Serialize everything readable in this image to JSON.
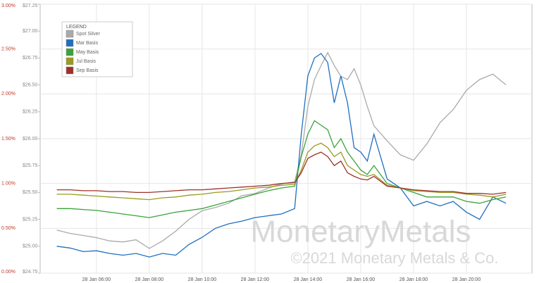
{
  "chart_data": {
    "type": "line",
    "x": [
      4.5,
      5,
      5.5,
      6,
      6.5,
      7,
      7.5,
      8,
      8.5,
      9,
      9.5,
      10,
      10.5,
      11,
      11.5,
      12,
      12.5,
      13,
      13.5,
      13.75,
      14,
      14.25,
      14.5,
      14.75,
      15,
      15.25,
      15.5,
      15.75,
      16,
      16.25,
      16.5,
      17,
      17.5,
      18,
      18.5,
      19,
      19.5,
      20,
      20.5,
      21,
      21.5
    ],
    "xlim": [
      3.87,
      22.48
    ],
    "xticks": [
      {
        "value": 6,
        "label": "28 Jan 06:00"
      },
      {
        "value": 8,
        "label": "28 Jan 08:00"
      },
      {
        "value": 10,
        "label": "28 Jan 10:00"
      },
      {
        "value": 12,
        "label": "28 Jan 12:00"
      },
      {
        "value": 14,
        "label": "28 Jan 14:00"
      },
      {
        "value": 16,
        "label": "28 Jan 16:00"
      },
      {
        "value": 18,
        "label": "28 Jan 18:00"
      },
      {
        "value": 20,
        "label": "28 Jan 20:00"
      }
    ],
    "ylim": [
      0,
      3
    ],
    "yticks": [
      {
        "value": 0,
        "label": "0.00%"
      },
      {
        "value": 0.5,
        "label": "0.50%"
      },
      {
        "value": 1,
        "label": "1.00%"
      },
      {
        "value": 1.5,
        "label": "1.50%"
      },
      {
        "value": 2,
        "label": "2.00%"
      },
      {
        "value": 2.5,
        "label": "2.50%"
      },
      {
        "value": 3,
        "label": "3.00%"
      }
    ],
    "y2lim": [
      24.75,
      27.25
    ],
    "y2ticks": [
      {
        "value": 24.75,
        "label": "$24.75"
      },
      {
        "value": 25,
        "label": "$25.00"
      },
      {
        "value": 25.25,
        "label": "$25.25"
      },
      {
        "value": 25.5,
        "label": "$25.50"
      },
      {
        "value": 25.75,
        "label": "$25.75"
      },
      {
        "value": 26,
        "label": "$26.00"
      },
      {
        "value": 26.25,
        "label": "$26.25"
      },
      {
        "value": 26.5,
        "label": "$26.50"
      },
      {
        "value": 26.75,
        "label": "$26.75"
      },
      {
        "value": 27,
        "label": "$27.00"
      },
      {
        "value": 27.25,
        "label": "$27.25"
      }
    ],
    "grid": true,
    "legend_title": "LEGEND",
    "legend_position": "upper-left",
    "watermark": "MonetaryMetals",
    "copyright": "©2021 Monetary Metals & Co.",
    "series": [
      {
        "name": "Spot Silver",
        "color": "#aaaaaa",
        "axis": "y2",
        "values": [
          25.15,
          25.12,
          25.1,
          25.08,
          25.05,
          25.04,
          25.06,
          24.98,
          25.05,
          25.14,
          25.25,
          25.33,
          25.36,
          25.4,
          25.47,
          25.49,
          25.54,
          25.58,
          25.6,
          25.85,
          26.3,
          26.55,
          26.68,
          26.8,
          26.68,
          26.58,
          26.55,
          26.65,
          26.5,
          26.3,
          26.12,
          25.98,
          25.85,
          25.8,
          25.95,
          26.15,
          26.27,
          26.45,
          26.55,
          26.6,
          26.5
        ]
      },
      {
        "name": "Mar Basis",
        "color": "#1f6fbf",
        "values": [
          0.3,
          0.28,
          0.24,
          0.25,
          0.22,
          0.2,
          0.22,
          0.18,
          0.22,
          0.2,
          0.32,
          0.4,
          0.5,
          0.55,
          0.58,
          0.62,
          0.64,
          0.66,
          0.72,
          1.55,
          2.2,
          2.4,
          2.45,
          2.35,
          1.9,
          2.2,
          1.9,
          1.4,
          1.35,
          1.25,
          1.55,
          1.05,
          0.95,
          0.75,
          0.8,
          0.75,
          0.8,
          0.68,
          0.6,
          0.85,
          0.78
        ]
      },
      {
        "name": "May Basis",
        "color": "#3aa33a",
        "values": [
          0.72,
          0.72,
          0.71,
          0.7,
          0.68,
          0.66,
          0.64,
          0.62,
          0.65,
          0.68,
          0.7,
          0.72,
          0.76,
          0.8,
          0.84,
          0.88,
          0.92,
          0.95,
          0.97,
          1.3,
          1.55,
          1.7,
          1.65,
          1.6,
          1.4,
          1.5,
          1.35,
          1.25,
          1.15,
          1.1,
          1.2,
          1.0,
          0.95,
          0.9,
          0.85,
          0.85,
          0.85,
          0.8,
          0.78,
          0.82,
          0.85
        ]
      },
      {
        "name": "Jul Basis",
        "color": "#9a9a20",
        "values": [
          0.88,
          0.88,
          0.87,
          0.86,
          0.85,
          0.84,
          0.83,
          0.82,
          0.84,
          0.85,
          0.87,
          0.88,
          0.9,
          0.91,
          0.93,
          0.95,
          0.96,
          0.98,
          0.99,
          1.15,
          1.35,
          1.42,
          1.45,
          1.4,
          1.3,
          1.35,
          1.2,
          1.15,
          1.1,
          1.08,
          1.1,
          0.98,
          0.95,
          0.92,
          0.91,
          0.9,
          0.9,
          0.88,
          0.87,
          0.85,
          0.88
        ]
      },
      {
        "name": "Sep Basis",
        "color": "#a0302a",
        "values": [
          0.93,
          0.93,
          0.92,
          0.92,
          0.91,
          0.91,
          0.9,
          0.9,
          0.91,
          0.92,
          0.93,
          0.93,
          0.94,
          0.95,
          0.96,
          0.97,
          0.98,
          1.0,
          1.01,
          1.12,
          1.28,
          1.32,
          1.35,
          1.3,
          1.2,
          1.25,
          1.12,
          1.08,
          1.05,
          1.04,
          1.08,
          0.97,
          0.95,
          0.93,
          0.92,
          0.91,
          0.91,
          0.89,
          0.89,
          0.88,
          0.9
        ]
      }
    ]
  }
}
